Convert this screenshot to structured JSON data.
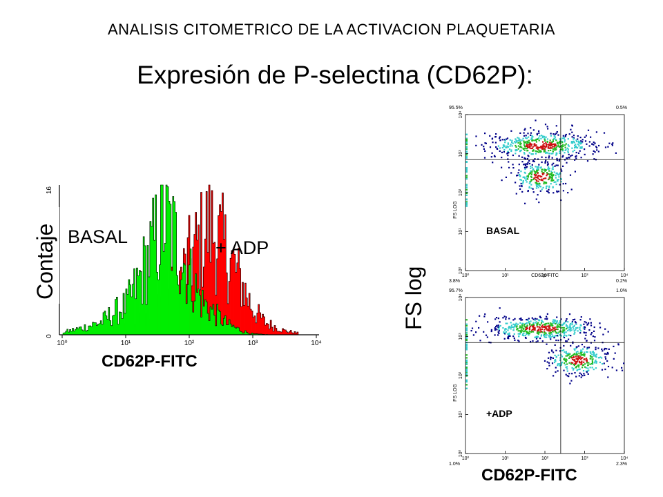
{
  "slide": {
    "header": "ANALISIS CITOMETRICO DE LA ACTIVACION PLAQUETARIA",
    "title": "Expresión de P-selectina (CD62P):"
  },
  "colors": {
    "basal_series": "#00ee00",
    "adp_series": "#ff0000",
    "density_high": "#cc1111",
    "density_mid": "#22bb22",
    "density_low": "#33cccc",
    "density_sparse": "#000088"
  },
  "chart_data": [
    {
      "type": "area",
      "subtype": "overlaid histogram",
      "title": "",
      "xlabel": "CD62P-FITC",
      "ylabel": "Contaje",
      "x_scale": "log",
      "xlim": [
        1,
        10000
      ],
      "ylim": [
        0,
        16
      ],
      "x_tick_labels": [
        "10⁰",
        "10¹",
        "10²",
        "10³",
        "10⁴"
      ],
      "y_tick_labels": [
        "0",
        "16"
      ],
      "annotations": [
        "BASAL",
        "+ ADP"
      ],
      "series": [
        {
          "name": "BASAL",
          "color": "#00ee00",
          "x": [
            1,
            2,
            4,
            6,
            10,
            15,
            25,
            40,
            60,
            100,
            150,
            250,
            400,
            700,
            1000,
            2000
          ],
          "values": [
            0.3,
            0.8,
            1.5,
            2.5,
            3.5,
            6,
            10,
            14,
            11,
            7,
            4,
            2.5,
            1.2,
            0.4,
            0.1,
            0
          ]
        },
        {
          "name": "+ ADP",
          "color": "#ff0000",
          "x": [
            1,
            3,
            10,
            20,
            40,
            70,
            100,
            150,
            200,
            300,
            500,
            700,
            1000,
            1500,
            3000,
            5000
          ],
          "values": [
            0,
            0.3,
            1,
            2,
            4,
            6.5,
            9,
            11,
            13,
            11,
            8,
            5.5,
            3,
            1.5,
            0.5,
            0.2
          ]
        }
      ]
    },
    {
      "type": "scatter",
      "subtype": "density dot plot",
      "panel_label": "BASAL",
      "xlabel": "CD62p-FITC",
      "ylabel": "FS LOG",
      "x_scale": "log",
      "y_scale": "log",
      "xlim": [
        1,
        10000
      ],
      "ylim": [
        1,
        10000
      ],
      "x_tick_labels": [
        "10⁰",
        "10¹",
        "10²",
        "10³",
        "10⁴"
      ],
      "y_tick_labels": [
        "10⁰",
        "10¹",
        "10²",
        "10³",
        "10⁴"
      ],
      "gate": {
        "x": 250,
        "y": 700
      },
      "quadrant_percentages": {
        "upper_left": "95.5%",
        "upper_right": "0.5%",
        "lower_left": "3.8%",
        "lower_right": "0.2%"
      },
      "populations": [
        {
          "center": [
            80,
            1600
          ],
          "spread": [
            0.75,
            0.17
          ],
          "count": 520
        },
        {
          "center": [
            80,
            250
          ],
          "spread": [
            0.45,
            0.2
          ],
          "count": 280
        }
      ]
    },
    {
      "type": "scatter",
      "subtype": "density dot plot",
      "panel_label": "+ADP",
      "xlabel": "",
      "ylabel": "FS LOG",
      "x_scale": "log",
      "y_scale": "log",
      "xlim": [
        1,
        10000
      ],
      "ylim": [
        1,
        10000
      ],
      "x_tick_labels": [
        "10⁰",
        "10¹",
        "10²",
        "10³",
        "10⁴"
      ],
      "y_tick_labels": [
        "10⁰",
        "10¹",
        "10²",
        "10³",
        "10⁴"
      ],
      "gate": {
        "x": 250,
        "y": 700
      },
      "quadrant_percentages": {
        "upper_left": "95.7%",
        "upper_right": "1.0%",
        "lower_left": "1.0%",
        "lower_right": "2.3%"
      },
      "populations": [
        {
          "center": [
            80,
            1600
          ],
          "spread": [
            0.75,
            0.15
          ],
          "count": 520
        },
        {
          "center": [
            700,
            250
          ],
          "spread": [
            0.5,
            0.2
          ],
          "count": 300
        }
      ]
    }
  ],
  "labels": {
    "hist_xlabel": "CD62P-FITC",
    "hist_ylabel": "Contaje",
    "hist_basal": "BASAL",
    "hist_adp": "+ ADP",
    "right_ylabel": "FS log",
    "right_xlabel": "CD62P-FITC"
  }
}
